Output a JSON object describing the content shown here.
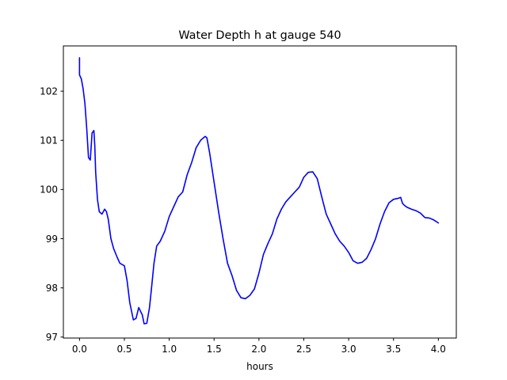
{
  "chart_data": {
    "type": "line",
    "title": "Water Depth h at gauge 540",
    "xlabel": "hours",
    "ylabel": "",
    "xlim": [
      -0.18,
      4.2
    ],
    "ylim": [
      96.98,
      102.92
    ],
    "xticks": [
      0.0,
      0.5,
      1.0,
      1.5,
      2.0,
      2.5,
      3.0,
      3.5,
      4.0
    ],
    "xtick_labels": [
      "0.0",
      "0.5",
      "1.0",
      "1.5",
      "2.0",
      "2.5",
      "3.0",
      "3.5",
      "4.0"
    ],
    "yticks": [
      97,
      98,
      99,
      100,
      101,
      102
    ],
    "ytick_labels": [
      "97",
      "98",
      "99",
      "100",
      "101",
      "102"
    ],
    "grid": false,
    "series": [
      {
        "color": "#0000ff",
        "x": [
          0.0,
          0.0,
          0.02,
          0.04,
          0.06,
          0.08,
          0.1,
          0.12,
          0.14,
          0.16,
          0.17,
          0.18,
          0.2,
          0.22,
          0.25,
          0.28,
          0.3,
          0.32,
          0.35,
          0.38,
          0.42,
          0.45,
          0.5,
          0.53,
          0.56,
          0.6,
          0.63,
          0.66,
          0.7,
          0.72,
          0.75,
          0.78,
          0.8,
          0.83,
          0.86,
          0.9,
          0.95,
          1.0,
          1.05,
          1.1,
          1.15,
          1.2,
          1.25,
          1.3,
          1.35,
          1.4,
          1.42,
          1.45,
          1.5,
          1.55,
          1.6,
          1.65,
          1.7,
          1.75,
          1.8,
          1.85,
          1.9,
          1.95,
          2.0,
          2.05,
          2.1,
          2.15,
          2.2,
          2.25,
          2.3,
          2.35,
          2.4,
          2.45,
          2.5,
          2.55,
          2.6,
          2.65,
          2.7,
          2.75,
          2.8,
          2.85,
          2.9,
          2.95,
          3.0,
          3.05,
          3.1,
          3.15,
          3.2,
          3.25,
          3.3,
          3.35,
          3.4,
          3.45,
          3.5,
          3.55,
          3.58,
          3.6,
          3.62,
          3.65,
          3.7,
          3.75,
          3.8,
          3.85,
          3.9,
          3.95,
          4.0
        ],
        "y": [
          102.68,
          102.33,
          102.25,
          102.05,
          101.75,
          101.25,
          100.65,
          100.6,
          101.15,
          101.2,
          100.9,
          100.35,
          99.8,
          99.55,
          99.5,
          99.6,
          99.55,
          99.4,
          99.0,
          98.8,
          98.62,
          98.5,
          98.45,
          98.15,
          97.7,
          97.35,
          97.38,
          97.6,
          97.45,
          97.27,
          97.28,
          97.6,
          97.95,
          98.5,
          98.85,
          98.95,
          99.15,
          99.45,
          99.65,
          99.85,
          99.95,
          100.3,
          100.55,
          100.85,
          101.0,
          101.08,
          101.05,
          100.75,
          100.15,
          99.55,
          99.0,
          98.5,
          98.25,
          97.95,
          97.8,
          97.78,
          97.85,
          97.98,
          98.3,
          98.68,
          98.9,
          99.1,
          99.4,
          99.6,
          99.75,
          99.85,
          99.95,
          100.05,
          100.25,
          100.35,
          100.36,
          100.22,
          99.85,
          99.5,
          99.3,
          99.1,
          98.95,
          98.85,
          98.72,
          98.55,
          98.5,
          98.52,
          98.6,
          98.78,
          99.0,
          99.3,
          99.55,
          99.73,
          99.8,
          99.82,
          99.84,
          99.72,
          99.68,
          99.64,
          99.6,
          99.57,
          99.52,
          99.43,
          99.42,
          99.38,
          99.32
        ]
      }
    ]
  }
}
